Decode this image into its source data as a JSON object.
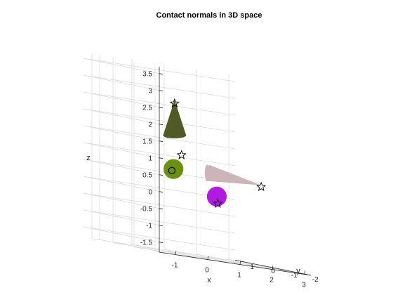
{
  "chart_data": {
    "type": "3d-scatter",
    "title": "Contact normals in 3D space",
    "xlabel": "x",
    "ylabel": "y",
    "zlabel": "z",
    "xlim": [
      -1.5,
      3.2
    ],
    "ylim": [
      -2.2,
      1.4
    ],
    "zlim": [
      -1.8,
      3.7
    ],
    "xticks": [
      "-1",
      "0",
      "1",
      "2",
      "3"
    ],
    "yticks": [
      "-2",
      "-1",
      "0",
      "1"
    ],
    "zticks": [
      "-1.5",
      "-1",
      "-0.5",
      "0",
      "0.5",
      "1",
      "1.5",
      "2",
      "2.5",
      "3",
      "3.5"
    ],
    "grid": true,
    "objects": [
      {
        "kind": "cone",
        "color": "#4f5a27",
        "apex": [
          0.8,
          0.6,
          2.7
        ],
        "base_center": [
          0.8,
          0.6,
          1.65
        ],
        "base_radius": 0.35
      },
      {
        "kind": "sphere",
        "color": "#6b8f0f",
        "center": [
          0.7,
          0.5,
          0.65
        ],
        "radius": 0.3
      },
      {
        "kind": "sphere",
        "color": "#b11ae0",
        "center": [
          1.65,
          -0.1,
          0.05
        ],
        "radius": 0.3
      },
      {
        "kind": "cone",
        "color": "#cdb4b8",
        "apex": [
          2.7,
          -0.6,
          0.6
        ],
        "base_center": [
          1.55,
          0.2,
          0.7
        ],
        "base_radius": 0.25
      }
    ],
    "contact_points": [
      {
        "marker": "star",
        "x": 0.8,
        "y": 0.6,
        "z": 2.6
      },
      {
        "marker": "star",
        "x": 0.95,
        "y": 0.5,
        "z": 1.1
      },
      {
        "marker": "star",
        "x": 2.7,
        "y": -0.6,
        "z": 0.55
      },
      {
        "marker": "star",
        "x": 1.55,
        "y": -0.3,
        "z": -0.15
      },
      {
        "marker": "circle",
        "x": 0.65,
        "y": 0.5,
        "z": 0.6
      }
    ]
  }
}
